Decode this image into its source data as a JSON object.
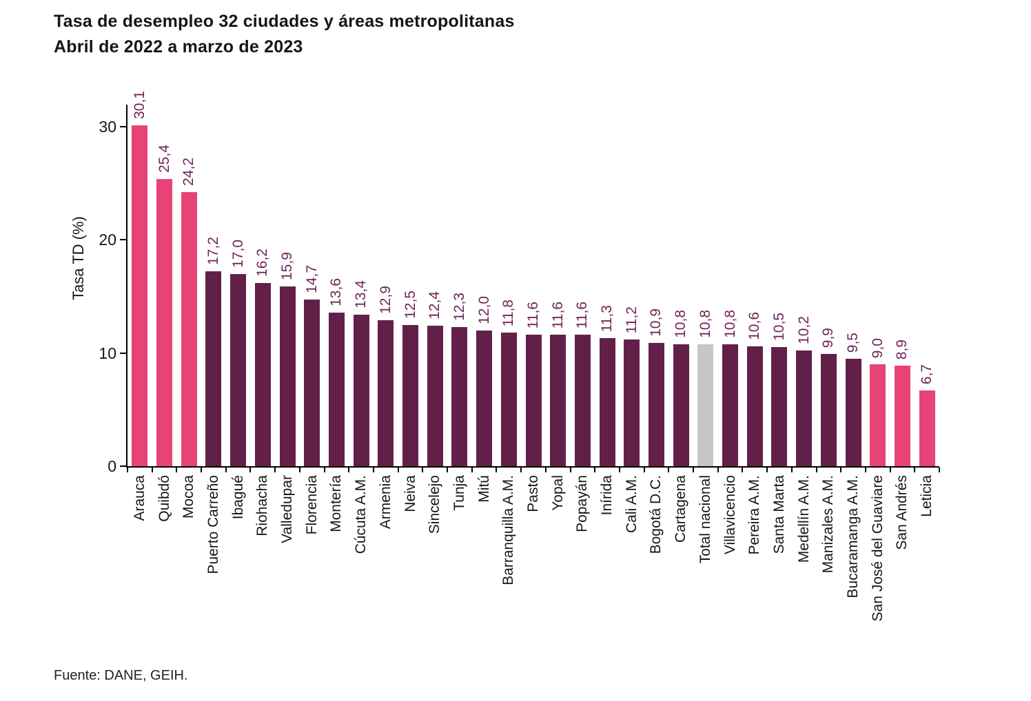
{
  "title": {
    "line1": "Tasa de desempleo 32 ciudades y áreas metropolitanas",
    "line2": "Abril de 2022 a marzo de 2023"
  },
  "source": "Fuente: DANE, GEIH.",
  "chart_data": {
    "type": "bar",
    "title": "Tasa de desempleo 32 ciudades y áreas metropolitanas",
    "subtitle": "Abril de 2022 a marzo de 2023",
    "xlabel": "",
    "ylabel": "Tasa TD (%)",
    "ylim": [
      0,
      32
    ],
    "yticks": [
      0,
      10,
      20,
      30
    ],
    "grid": false,
    "legend_position": "none",
    "categories": [
      "Arauca",
      "Quibdó",
      "Mocoa",
      "Puerto Carreño",
      "Ibagué",
      "Riohacha",
      "Valledupar",
      "Florencia",
      "Montería",
      "Cúcuta A.M.",
      "Armenia",
      "Neiva",
      "Sincelejo",
      "Tunja",
      "Mitú",
      "Barranquilla A.M.",
      "Pasto",
      "Yopal",
      "Popayán",
      "Inírida",
      "Cali A.M.",
      "Bogotá D.C.",
      "Cartagena",
      "Total nacional",
      "Villavicencio",
      "Pereira A.M.",
      "Santa Marta",
      "Medellín A.M.",
      "Manizales A.M.",
      "Bucaramanga A.M.",
      "San José del Guaviare",
      "San Andrés",
      "Leticia"
    ],
    "values": [
      30.1,
      25.4,
      24.2,
      17.2,
      17.0,
      16.2,
      15.9,
      14.7,
      13.6,
      13.4,
      12.9,
      12.5,
      12.4,
      12.3,
      12.0,
      11.8,
      11.6,
      11.6,
      11.6,
      11.3,
      11.2,
      10.9,
      10.8,
      10.8,
      10.8,
      10.6,
      10.5,
      10.2,
      9.9,
      9.5,
      9.0,
      8.9,
      6.7
    ],
    "value_labels": [
      "30,1",
      "25,4",
      "24,2",
      "17,2",
      "17,0",
      "16,2",
      "15,9",
      "14,7",
      "13,6",
      "13,4",
      "12,9",
      "12,5",
      "12,4",
      "12,3",
      "12,0",
      "11,8",
      "11,6",
      "11,6",
      "11,6",
      "11,3",
      "11,2",
      "10,9",
      "10,8",
      "10,8",
      "10,8",
      "10,6",
      "10,5",
      "10,2",
      "9,9",
      "9,5",
      "9,0",
      "8,9",
      "6,7"
    ],
    "bar_roles": [
      "highlight",
      "highlight",
      "highlight",
      "base",
      "base",
      "base",
      "base",
      "base",
      "base",
      "base",
      "base",
      "base",
      "base",
      "base",
      "base",
      "base",
      "base",
      "base",
      "base",
      "base",
      "base",
      "base",
      "base",
      "national",
      "base",
      "base",
      "base",
      "base",
      "base",
      "base",
      "highlight",
      "highlight",
      "highlight"
    ],
    "colors": {
      "base": "#622049",
      "highlight": "#E84377",
      "national": "#C6C6C6",
      "value_label": "#702457",
      "axis": "#000000",
      "text": "#161616"
    }
  }
}
